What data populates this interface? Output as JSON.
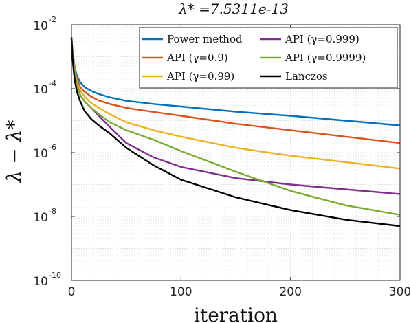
{
  "chart_data": {
    "type": "line",
    "title": "λ* =7.5311e-13",
    "xlabel": "iteration",
    "ylabel": "λ − λ*",
    "xlim": [
      0,
      300
    ],
    "ylim_log10": [
      -10,
      -2
    ],
    "yscale": "log",
    "grid": "minor dotted",
    "legend_position": "top-right, 2 columns",
    "x_ticks": [
      "0",
      "100",
      "200",
      "300"
    ],
    "y_ticks": [
      {
        "base": "10",
        "exp": "-10",
        "value": -10
      },
      {
        "base": "10",
        "exp": "-8",
        "value": -8
      },
      {
        "base": "10",
        "exp": "-6",
        "value": -6
      },
      {
        "base": "10",
        "exp": "-4",
        "value": -4
      },
      {
        "base": "10",
        "exp": "-2",
        "value": -2
      }
    ],
    "x": [
      0,
      1,
      2,
      3,
      5,
      8,
      12,
      18,
      25,
      35,
      50,
      75,
      100,
      150,
      200,
      250,
      300
    ],
    "series": [
      {
        "name": "Power method",
        "color": "#0072BD",
        "values": [
          -2.4,
          -2.8,
          -3.1,
          -3.35,
          -3.6,
          -3.8,
          -3.95,
          -4.07,
          -4.17,
          -4.27,
          -4.38,
          -4.48,
          -4.56,
          -4.72,
          -4.85,
          -5.0,
          -5.15
        ]
      },
      {
        "name": "API (γ=0.9)",
        "color": "#D95319",
        "values": [
          -2.4,
          -2.85,
          -3.15,
          -3.4,
          -3.7,
          -3.95,
          -4.1,
          -4.25,
          -4.37,
          -4.48,
          -4.6,
          -4.73,
          -4.85,
          -5.1,
          -5.3,
          -5.5,
          -5.7
        ]
      },
      {
        "name": "API (γ=0.99)",
        "color": "#EDB120",
        "values": [
          -2.4,
          -2.9,
          -3.2,
          -3.5,
          -3.8,
          -4.05,
          -4.25,
          -4.45,
          -4.6,
          -4.8,
          -5.05,
          -5.3,
          -5.5,
          -5.85,
          -6.1,
          -6.3,
          -6.5
        ]
      },
      {
        "name": "API (γ=0.999)",
        "color": "#7E2F8E",
        "values": [
          -2.4,
          -2.95,
          -3.3,
          -3.6,
          -3.9,
          -4.2,
          -4.4,
          -4.6,
          -4.85,
          -5.2,
          -5.7,
          -6.15,
          -6.45,
          -6.8,
          -7.0,
          -7.15,
          -7.3
        ]
      },
      {
        "name": "API (γ=0.9999)",
        "color": "#77AC30",
        "values": [
          -2.4,
          -2.95,
          -3.3,
          -3.6,
          -3.9,
          -4.2,
          -4.4,
          -4.6,
          -4.8,
          -5.05,
          -5.3,
          -5.6,
          -5.95,
          -6.6,
          -7.2,
          -7.65,
          -7.95
        ]
      },
      {
        "name": "Lanczos",
        "color": "#000000",
        "values": [
          -2.4,
          -3.05,
          -3.45,
          -3.75,
          -4.1,
          -4.4,
          -4.7,
          -4.95,
          -5.15,
          -5.4,
          -5.85,
          -6.4,
          -6.85,
          -7.4,
          -7.8,
          -8.1,
          -8.3
        ]
      }
    ]
  }
}
